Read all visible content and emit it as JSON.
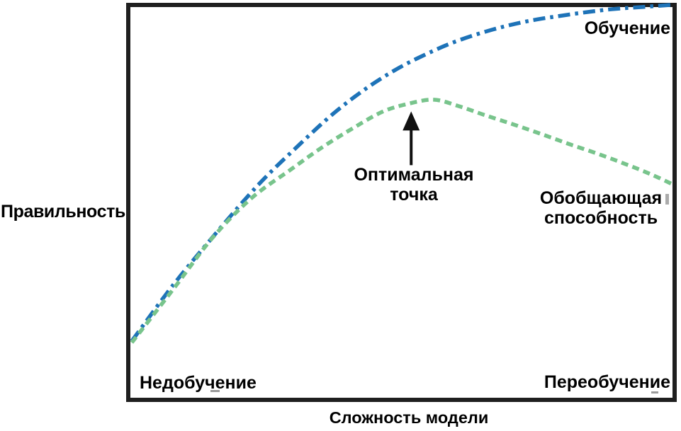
{
  "figure": {
    "background": "#ffffff",
    "box_border_color": "#1f1f1f"
  },
  "labels": {
    "y_axis": "Правильность",
    "x_axis": "Сложность модели",
    "training": "Обучение",
    "generalization_line1": "Обобщающая",
    "generalization_line2": "способность",
    "optimal_line1": "Оптимальная",
    "optimal_line2": "точка",
    "underfitting": "Недобучение",
    "overfitting": "Переобучение"
  },
  "colors": {
    "training_curve": "#1e73b8",
    "generalization_curve": "#78c48c",
    "arrow": "#111111"
  },
  "chart_data": {
    "type": "line",
    "title": "",
    "xlabel": "Сложность модели",
    "ylabel": "Правильность",
    "x_range": [
      0,
      1
    ],
    "y_range": [
      0,
      1
    ],
    "grid": false,
    "axes_ticks": false,
    "legend": "inline-annotations",
    "series": [
      {
        "name": "Обучение",
        "style": "dash-dot",
        "color": "#1e73b8",
        "x": [
          0,
          0.077,
          0.156,
          0.234,
          0.306,
          0.372,
          0.431,
          0.486,
          0.542,
          0.601,
          0.666,
          0.732,
          0.804,
          0.882,
          0.941,
          1.0
        ],
        "y": [
          0.142,
          0.287,
          0.42,
          0.544,
          0.642,
          0.726,
          0.789,
          0.838,
          0.878,
          0.913,
          0.942,
          0.964,
          0.98,
          0.994,
          1.0,
          1.006
        ]
      },
      {
        "name": "Обобщающая способность",
        "style": "dashed",
        "color": "#78c48c",
        "x": [
          0,
          0.077,
          0.149,
          0.221,
          0.293,
          0.352,
          0.411,
          0.463,
          0.509,
          0.558,
          0.605,
          0.653,
          0.706,
          0.758,
          0.81,
          0.863,
          0.915,
          0.958,
          1.0
        ],
        "y": [
          0.138,
          0.276,
          0.407,
          0.509,
          0.582,
          0.64,
          0.691,
          0.731,
          0.751,
          0.762,
          0.745,
          0.722,
          0.698,
          0.673,
          0.647,
          0.622,
          0.595,
          0.571,
          0.544
        ]
      }
    ],
    "annotations": [
      {
        "text": "Оптимальная точка",
        "type": "arrow",
        "x": 0.516,
        "y": 0.752
      },
      {
        "text": "Недобучение",
        "region": "bottom-left"
      },
      {
        "text": "Переобучение",
        "region": "bottom-right"
      },
      {
        "text": "Обучение",
        "attached_to": "Обучение"
      },
      {
        "text": "Обобщающая способность",
        "attached_to": "Обобщающая способность"
      }
    ]
  }
}
